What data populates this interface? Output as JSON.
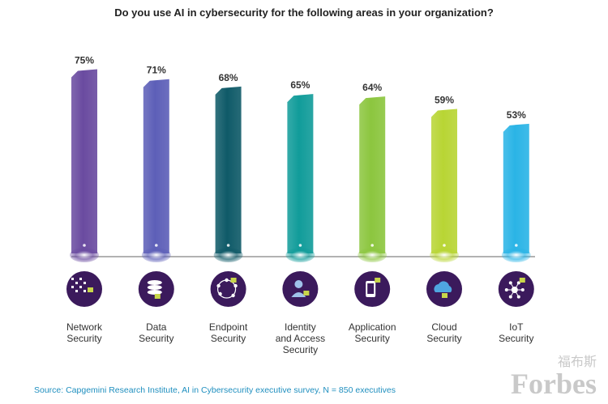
{
  "chart_data": {
    "type": "bar",
    "title": "Do you use AI in cybersecurity for the following areas in your organization?",
    "categories": [
      [
        "Network",
        "Security"
      ],
      [
        "Data",
        "Security"
      ],
      [
        "Endpoint",
        "Security"
      ],
      [
        "Identity",
        "and Access",
        "Security"
      ],
      [
        "Application",
        "Security"
      ],
      [
        "Cloud",
        "Security"
      ],
      [
        "IoT",
        "Security"
      ]
    ],
    "values": [
      75,
      71,
      68,
      65,
      64,
      59,
      53
    ],
    "value_labels": [
      "75%",
      "71%",
      "68%",
      "65%",
      "64%",
      "59%",
      "53%"
    ],
    "unit": "%",
    "colors": [
      "#6a4ba0",
      "#5d5fb8",
      "#0f5a68",
      "#119c9a",
      "#8cc63f",
      "#b8d534",
      "#2ab4e6"
    ],
    "icons": [
      "network-security-icon",
      "data-security-icon",
      "endpoint-security-icon",
      "identity-access-icon",
      "application-security-icon",
      "cloud-security-icon",
      "iot-security-icon"
    ],
    "ylim": [
      0,
      100
    ],
    "grid": false,
    "legend": "none"
  },
  "source": "Source: Capgemini Research Institute, AI in Cybersecurity executive survey, N = 850 executives",
  "watermark": {
    "text": "Forbes",
    "cjk": "福布斯",
    "color": "#c9c9c9"
  },
  "icon_circle_color": "#3b1a5c"
}
